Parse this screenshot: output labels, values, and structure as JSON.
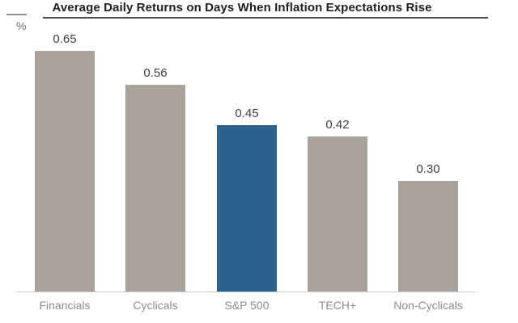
{
  "chart_data": {
    "type": "bar",
    "title": "Average Daily Returns on Days When Inflation Expectations Rise",
    "ylabel": "%",
    "xlabel": "",
    "categories": [
      "Financials",
      "Cyclicals",
      "S&P 500",
      "TECH+",
      "Non-Cyclicals"
    ],
    "values": [
      0.65,
      0.56,
      0.45,
      0.42,
      0.3
    ],
    "value_labels": [
      "0.65",
      "0.56",
      "0.45",
      "0.42",
      "0.30"
    ],
    "highlight_index": 2,
    "ylim": [
      0,
      0.7
    ],
    "grid": false,
    "legend_position": "none",
    "colors": {
      "bar_default": "#A9A29B",
      "bar_highlight": "#2A618F",
      "title_text": "#1F1F1F",
      "title_rule": "#4D4D4D",
      "axis_stub": "#919191",
      "ylabel_text": "#6E6E6E",
      "value_label_text": "#3F3F3F",
      "category_label_text": "#8C8C8C",
      "baseline": "#C9C9C9",
      "background": "#FFFFFF"
    }
  }
}
